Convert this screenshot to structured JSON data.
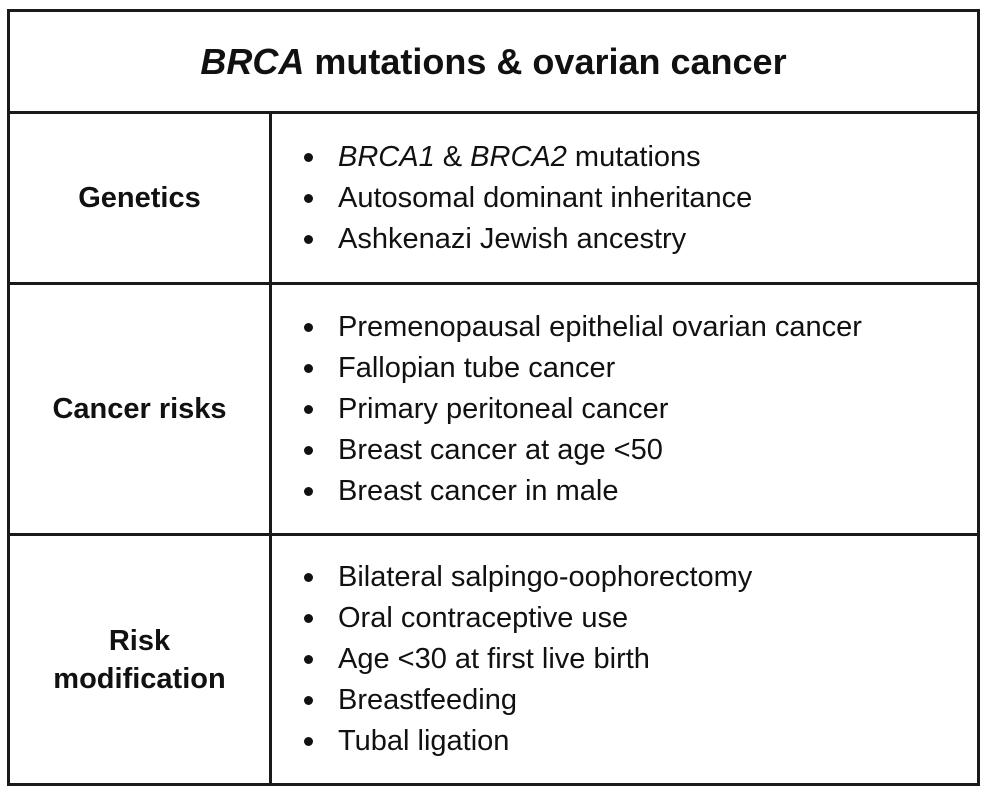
{
  "title": {
    "italic": "BRCA",
    "rest": " mutations & ovarian cancer"
  },
  "rows": [
    {
      "label": "Genetics",
      "items": [
        {
          "italic_a": "BRCA1",
          "sep": " & ",
          "italic_b": "BRCA2",
          "tail": " mutations"
        },
        {
          "text": "Autosomal dominant inheritance"
        },
        {
          "text": "Ashkenazi Jewish ancestry"
        }
      ]
    },
    {
      "label": "Cancer risks",
      "items": [
        {
          "text": "Premenopausal epithelial ovarian cancer"
        },
        {
          "text": "Fallopian tube cancer"
        },
        {
          "text": "Primary peritoneal cancer"
        },
        {
          "text": "Breast cancer at age <50"
        },
        {
          "text": "Breast cancer in male"
        }
      ]
    },
    {
      "label_line1": "Risk",
      "label_line2": "modification",
      "items": [
        {
          "text": "Bilateral salpingo-oophorectomy"
        },
        {
          "text": "Oral contraceptive use"
        },
        {
          "text": "Age <30 at first live birth"
        },
        {
          "text": "Breastfeeding"
        },
        {
          "text": "Tubal ligation"
        }
      ]
    }
  ],
  "colors": {
    "border": "#1a1a1a",
    "text": "#111111",
    "background": "#ffffff"
  },
  "icons": {
    "bullet": "bullet-dot-icon"
  }
}
